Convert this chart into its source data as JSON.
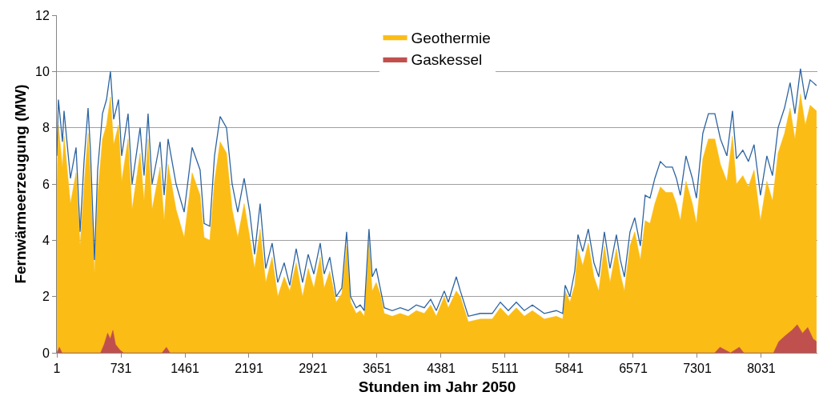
{
  "chart_data": {
    "type": "area",
    "xlabel": "Stunden im Jahr 2050",
    "ylabel": "Fernwärmeerzeugung (MW)",
    "xlim": [
      1,
      8670
    ],
    "xticks": [
      1,
      731,
      1461,
      2191,
      2921,
      3651,
      4381,
      5111,
      5841,
      6571,
      7301,
      8031
    ],
    "ylim": [
      0,
      12
    ],
    "yticks": [
      0,
      2,
      4,
      6,
      8,
      10,
      12
    ],
    "grid": "y",
    "legend": "top",
    "marker": "none",
    "series": [
      {
        "name": "Geothermie",
        "color": "#fbbc15",
        "x": [
          1,
          19,
          65,
          83,
          156,
          220,
          266,
          311,
          357,
          384,
          430,
          466,
          521,
          567,
          612,
          649,
          704,
          740,
          813,
          859,
          950,
          995,
          1041,
          1087,
          1178,
          1224,
          1269,
          1360,
          1452,
          1543,
          1634,
          1680,
          1744,
          1798,
          1862,
          1935,
          1999,
          2063,
          2136,
          2200,
          2255,
          2318,
          2382,
          2455,
          2519,
          2592,
          2656,
          2729,
          2802,
          2866,
          2930,
          3003,
          3048,
          3112,
          3185,
          3249,
          3304,
          3349,
          3413,
          3459,
          3505,
          3559,
          3596,
          3641,
          3687,
          3733,
          3824,
          3915,
          4006,
          4098,
          4189,
          4262,
          4326,
          4417,
          4463,
          4554,
          4600,
          4691,
          4828,
          4964,
          5056,
          5147,
          5238,
          5329,
          5421,
          5557,
          5694,
          5767,
          5795,
          5849,
          5904,
          5941,
          5995,
          6059,
          6123,
          6178,
          6242,
          6306,
          6379,
          6424,
          6470,
          6534,
          6588,
          6652,
          6707,
          6762,
          6817,
          6880,
          6944,
          7017,
          7063,
          7108,
          7172,
          7245,
          7291,
          7364,
          7428,
          7501,
          7565,
          7638,
          7702,
          7747,
          7820,
          7884,
          7948,
          8021,
          8094,
          8158,
          8222,
          8295,
          8359,
          8414,
          8477,
          8532,
          8587,
          8660
        ],
        "values": [
          6.1,
          8.1,
          6.6,
          7.7,
          5.3,
          6.4,
          3.8,
          5.9,
          7.8,
          6.3,
          2.8,
          5.6,
          7.6,
          8.1,
          9.1,
          7.4,
          8.1,
          6.1,
          7.6,
          5.1,
          7.1,
          5.4,
          7.6,
          5.1,
          6.6,
          4.7,
          6.7,
          5.1,
          4.1,
          6.4,
          5.6,
          4.1,
          4.0,
          6.1,
          7.5,
          7.1,
          5.1,
          4.1,
          5.3,
          4.1,
          3.0,
          4.4,
          2.5,
          3.4,
          2.0,
          2.7,
          2.2,
          3.2,
          2.0,
          3.0,
          2.3,
          3.4,
          2.3,
          2.9,
          1.8,
          2.1,
          3.8,
          1.8,
          1.4,
          1.5,
          1.3,
          3.9,
          2.2,
          2.5,
          2.1,
          1.4,
          1.3,
          1.4,
          1.3,
          1.5,
          1.4,
          1.7,
          1.3,
          2.0,
          1.6,
          2.2,
          2.0,
          1.1,
          1.2,
          1.2,
          1.6,
          1.3,
          1.6,
          1.3,
          1.5,
          1.2,
          1.3,
          1.2,
          2.2,
          1.8,
          2.4,
          3.7,
          3.1,
          3.9,
          2.7,
          2.2,
          3.8,
          2.5,
          3.7,
          2.8,
          2.2,
          3.8,
          4.3,
          3.3,
          4.7,
          4.6,
          5.3,
          5.9,
          5.7,
          5.7,
          5.3,
          4.7,
          6.1,
          5.3,
          4.6,
          6.9,
          7.6,
          7.6,
          6.7,
          6.1,
          7.7,
          6.0,
          6.3,
          5.9,
          6.5,
          4.7,
          6.1,
          5.4,
          7.1,
          7.8,
          8.7,
          7.6,
          9.2,
          8.1,
          8.8,
          8.6
        ]
      },
      {
        "type": "line",
        "color": "#2e64a0",
        "x": [
          1,
          19,
          65,
          83,
          156,
          220,
          266,
          311,
          357,
          384,
          430,
          466,
          521,
          567,
          612,
          649,
          704,
          740,
          813,
          859,
          950,
          995,
          1041,
          1087,
          1178,
          1224,
          1269,
          1360,
          1452,
          1543,
          1634,
          1680,
          1744,
          1798,
          1862,
          1935,
          1999,
          2063,
          2136,
          2200,
          2255,
          2318,
          2382,
          2455,
          2519,
          2592,
          2656,
          2729,
          2802,
          2866,
          2930,
          3003,
          3048,
          3112,
          3185,
          3249,
          3304,
          3349,
          3413,
          3459,
          3505,
          3559,
          3596,
          3641,
          3687,
          3733,
          3824,
          3915,
          4006,
          4098,
          4189,
          4262,
          4326,
          4417,
          4463,
          4554,
          4600,
          4691,
          4828,
          4964,
          5056,
          5147,
          5238,
          5329,
          5421,
          5557,
          5694,
          5767,
          5795,
          5849,
          5904,
          5941,
          5995,
          6059,
          6123,
          6178,
          6242,
          6306,
          6379,
          6424,
          6470,
          6534,
          6588,
          6652,
          6707,
          6762,
          6817,
          6880,
          6944,
          7017,
          7063,
          7108,
          7172,
          7245,
          7291,
          7364,
          7428,
          7501,
          7565,
          7638,
          7702,
          7747,
          7820,
          7884,
          7948,
          8021,
          8094,
          8158,
          8222,
          8295,
          8359,
          8414,
          8477,
          8532,
          8587,
          8660
        ],
        "values": [
          7.0,
          9.0,
          7.5,
          8.6,
          6.2,
          7.3,
          4.3,
          6.8,
          8.7,
          7.2,
          3.3,
          6.5,
          8.5,
          9.0,
          10.0,
          8.3,
          9.0,
          7.0,
          8.5,
          6.0,
          8.0,
          6.3,
          8.5,
          6.0,
          7.5,
          5.6,
          7.6,
          6.0,
          5.0,
          7.3,
          6.5,
          4.6,
          4.5,
          7.0,
          8.4,
          8.0,
          6.0,
          5.0,
          6.2,
          5.0,
          3.5,
          5.3,
          3.0,
          3.9,
          2.5,
          3.2,
          2.4,
          3.7,
          2.5,
          3.5,
          2.8,
          3.9,
          2.8,
          3.4,
          2.0,
          2.3,
          4.3,
          2.0,
          1.6,
          1.7,
          1.5,
          4.4,
          2.7,
          3.0,
          2.3,
          1.6,
          1.5,
          1.6,
          1.5,
          1.7,
          1.6,
          1.9,
          1.5,
          2.2,
          1.8,
          2.7,
          2.2,
          1.3,
          1.4,
          1.4,
          1.8,
          1.5,
          1.8,
          1.5,
          1.7,
          1.4,
          1.5,
          1.4,
          2.4,
          2.0,
          2.9,
          4.2,
          3.6,
          4.4,
          3.2,
          2.7,
          4.3,
          3.0,
          4.2,
          3.3,
          2.7,
          4.3,
          4.8,
          3.8,
          5.6,
          5.5,
          6.2,
          6.8,
          6.6,
          6.6,
          6.2,
          5.6,
          7.0,
          6.2,
          5.5,
          7.8,
          8.5,
          8.5,
          7.6,
          7.0,
          8.6,
          6.9,
          7.2,
          6.8,
          7.4,
          5.6,
          7.0,
          6.3,
          8.0,
          8.7,
          9.6,
          8.5,
          10.1,
          9.0,
          9.7,
          9.5
        ]
      },
      {
        "name": "Gaskessel",
        "color": "#c0504d",
        "x": [
          1,
          30,
          60,
          500,
          540,
          580,
          610,
          640,
          670,
          720,
          760,
          1200,
          1250,
          1290,
          7500,
          7560,
          7620,
          7680,
          7780,
          7830,
          8170,
          8230,
          8300,
          8380,
          8440,
          8500,
          8560,
          8620,
          8660
        ],
        "values": [
          0,
          0.2,
          0,
          0,
          0.3,
          0.7,
          0.5,
          0.8,
          0.3,
          0.1,
          0,
          0,
          0.2,
          0,
          0,
          0.2,
          0.1,
          0,
          0.2,
          0,
          0,
          0.4,
          0.6,
          0.8,
          1.0,
          0.7,
          0.9,
          0.5,
          0.4
        ]
      }
    ]
  }
}
